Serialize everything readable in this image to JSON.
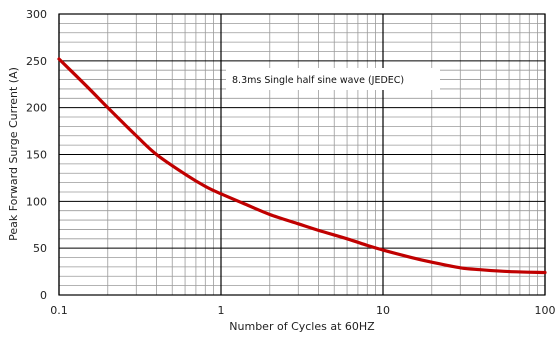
{
  "chart_data": {
    "type": "line",
    "title": "",
    "xlabel": "Number of Cycles at 60HZ",
    "ylabel": "Peak Forward Surge Current (A)",
    "xscale": "log",
    "xlim": [
      0.1,
      100
    ],
    "ylim": [
      0,
      300
    ],
    "xticks": [
      0.1,
      1,
      10,
      100
    ],
    "xtick_labels": [
      "0.1",
      "1",
      "10",
      "100"
    ],
    "yticks": [
      0,
      50,
      100,
      150,
      200,
      250,
      300
    ],
    "ytick_labels": [
      "0",
      "50",
      "100",
      "150",
      "200",
      "250",
      "300"
    ],
    "grid": true,
    "annotation": "8.3ms Single half sine wave (JEDEC)",
    "series": [
      {
        "name": "",
        "color": "#c00000",
        "x": [
          0.1,
          0.15,
          0.2,
          0.3,
          0.4,
          0.6,
          0.8,
          1,
          1.5,
          2,
          3,
          4,
          6,
          8,
          10,
          15,
          20,
          30,
          40,
          60,
          100
        ],
        "y": [
          252,
          222,
          200,
          170,
          150,
          129,
          116,
          108,
          95,
          86,
          76,
          69,
          60,
          53,
          48,
          40,
          35,
          29,
          27,
          25,
          24
        ]
      }
    ]
  }
}
